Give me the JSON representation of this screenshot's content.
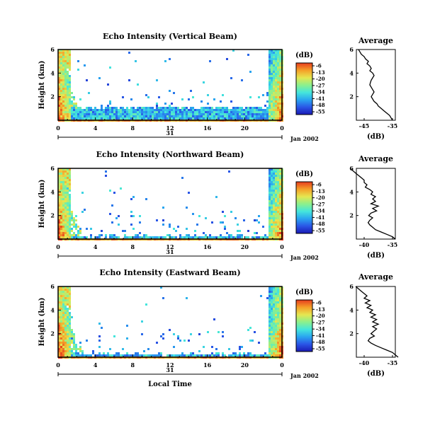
{
  "colorbar_stops": [
    "#1a1ab4",
    "#2a55e6",
    "#2aa5f0",
    "#44e6dc",
    "#8cf08c",
    "#e6e650",
    "#f5a028",
    "#e63c1e"
  ],
  "chart_data": [
    {
      "type": "heatmap",
      "title": "Echo Intensity (Vertical Beam)",
      "ylabel": "Height (km)",
      "y_ticks": [
        "6",
        "4",
        "2"
      ],
      "x_ticks": [
        "0",
        "4",
        "8",
        "12",
        "16",
        "20",
        "0"
      ],
      "date_tick": "31",
      "date_label": "Jan 2002",
      "x_range_hours": [
        0,
        24
      ],
      "y_range_km": [
        0,
        6
      ],
      "colorbar": {
        "label": "(dB)",
        "ticks": [
          "-6",
          "-13",
          "-20",
          "-27",
          "-34",
          "-41",
          "-48",
          "-55"
        ]
      },
      "profile": {
        "title": "Average",
        "xlabel": "(dB)",
        "x_ticks": [
          "-45",
          "-35"
        ],
        "y_ticks": [
          "6",
          "4",
          "2"
        ],
        "points": [
          [
            6.0,
            -47.0
          ],
          [
            5.8,
            -46.5
          ],
          [
            5.6,
            -46.0
          ],
          [
            5.4,
            -45.0
          ],
          [
            5.2,
            -44.5
          ],
          [
            5.0,
            -43.5
          ],
          [
            4.8,
            -44.0
          ],
          [
            4.6,
            -43.0
          ],
          [
            4.4,
            -42.5
          ],
          [
            4.2,
            -43.0
          ],
          [
            4.0,
            -42.0
          ],
          [
            3.8,
            -41.5
          ],
          [
            3.6,
            -42.0
          ],
          [
            3.4,
            -42.5
          ],
          [
            3.2,
            -42.8
          ],
          [
            3.0,
            -43.0
          ],
          [
            2.8,
            -42.5
          ],
          [
            2.6,
            -42.0
          ],
          [
            2.4,
            -41.5
          ],
          [
            2.2,
            -42.0
          ],
          [
            2.0,
            -42.5
          ],
          [
            1.8,
            -42.0
          ],
          [
            1.6,
            -41.5
          ],
          [
            1.4,
            -40.5
          ],
          [
            1.2,
            -40.0
          ],
          [
            1.0,
            -39.0
          ],
          [
            0.8,
            -38.0
          ],
          [
            0.6,
            -37.0
          ],
          [
            0.4,
            -36.0
          ],
          [
            0.2,
            -35.5
          ],
          [
            0.0,
            -35.0
          ]
        ]
      }
    },
    {
      "type": "heatmap",
      "title": "Echo Intensity (Northward Beam)",
      "ylabel": "Height (km)",
      "y_ticks": [
        "6",
        "4",
        "2"
      ],
      "x_ticks": [
        "0",
        "4",
        "8",
        "12",
        "16",
        "20",
        "0"
      ],
      "date_tick": "31",
      "date_label": "Jan 2002",
      "x_range_hours": [
        0,
        24
      ],
      "y_range_km": [
        0,
        6
      ],
      "colorbar": {
        "label": "(dB)",
        "ticks": [
          "-6",
          "-13",
          "-20",
          "-27",
          "-34",
          "-41",
          "-48",
          "-55"
        ]
      },
      "profile": {
        "title": "Average",
        "xlabel": "(dB)",
        "x_ticks": [
          "-40",
          "-35"
        ],
        "y_ticks": [
          "6",
          "4",
          "2"
        ],
        "points": [
          [
            6.0,
            -42.5
          ],
          [
            5.8,
            -42.0
          ],
          [
            5.6,
            -41.5
          ],
          [
            5.4,
            -41.0
          ],
          [
            5.2,
            -40.5
          ],
          [
            5.0,
            -40.0
          ],
          [
            4.8,
            -40.0
          ],
          [
            4.6,
            -39.5
          ],
          [
            4.4,
            -39.8
          ],
          [
            4.2,
            -39.0
          ],
          [
            4.0,
            -38.5
          ],
          [
            3.8,
            -38.8
          ],
          [
            3.6,
            -38.0
          ],
          [
            3.4,
            -38.5
          ],
          [
            3.2,
            -38.0
          ],
          [
            3.0,
            -38.8
          ],
          [
            2.8,
            -37.5
          ],
          [
            2.6,
            -38.5
          ],
          [
            2.4,
            -37.8
          ],
          [
            2.2,
            -38.8
          ],
          [
            2.0,
            -39.2
          ],
          [
            1.8,
            -38.5
          ],
          [
            1.6,
            -39.0
          ],
          [
            1.4,
            -39.3
          ],
          [
            1.2,
            -39.0
          ],
          [
            1.0,
            -38.5
          ],
          [
            0.8,
            -38.0
          ],
          [
            0.6,
            -37.0
          ],
          [
            0.4,
            -36.0
          ],
          [
            0.2,
            -35.0
          ],
          [
            0.0,
            -34.5
          ]
        ]
      }
    },
    {
      "type": "heatmap",
      "title": "Echo Intensity (Eastward Beam)",
      "ylabel": "Height (km)",
      "y_ticks": [
        "6",
        "4",
        "2"
      ],
      "x_ticks": [
        "0",
        "4",
        "8",
        "12",
        "16",
        "20",
        "0"
      ],
      "date_tick": "31",
      "date_label": "Jan 2002",
      "xlabel": "Local Time",
      "x_range_hours": [
        0,
        24
      ],
      "y_range_km": [
        0,
        6
      ],
      "colorbar": {
        "label": "(dB)",
        "ticks": [
          "-6",
          "-13",
          "-20",
          "-27",
          "-34",
          "-41",
          "-48",
          "-55"
        ]
      },
      "profile": {
        "title": "Average",
        "xlabel": "(dB)",
        "x_ticks": [
          "-40",
          "-35"
        ],
        "y_ticks": [
          "6",
          "4",
          "2"
        ],
        "points": [
          [
            6.0,
            -41.5
          ],
          [
            5.8,
            -41.0
          ],
          [
            5.6,
            -40.5
          ],
          [
            5.4,
            -40.0
          ],
          [
            5.2,
            -39.5
          ],
          [
            5.0,
            -40.0
          ],
          [
            4.8,
            -39.0
          ],
          [
            4.6,
            -39.8
          ],
          [
            4.4,
            -38.8
          ],
          [
            4.2,
            -39.5
          ],
          [
            4.0,
            -38.5
          ],
          [
            3.8,
            -39.0
          ],
          [
            3.6,
            -38.0
          ],
          [
            3.4,
            -38.8
          ],
          [
            3.2,
            -37.8
          ],
          [
            3.0,
            -38.5
          ],
          [
            2.8,
            -37.5
          ],
          [
            2.6,
            -38.5
          ],
          [
            2.4,
            -37.8
          ],
          [
            2.2,
            -38.3
          ],
          [
            2.0,
            -38.8
          ],
          [
            1.8,
            -38.2
          ],
          [
            1.6,
            -39.0
          ],
          [
            1.4,
            -39.3
          ],
          [
            1.2,
            -38.8
          ],
          [
            1.0,
            -38.0
          ],
          [
            0.8,
            -37.0
          ],
          [
            0.6,
            -36.0
          ],
          [
            0.4,
            -35.0
          ],
          [
            0.2,
            -34.5
          ],
          [
            0.0,
            -34.0
          ]
        ]
      }
    }
  ]
}
